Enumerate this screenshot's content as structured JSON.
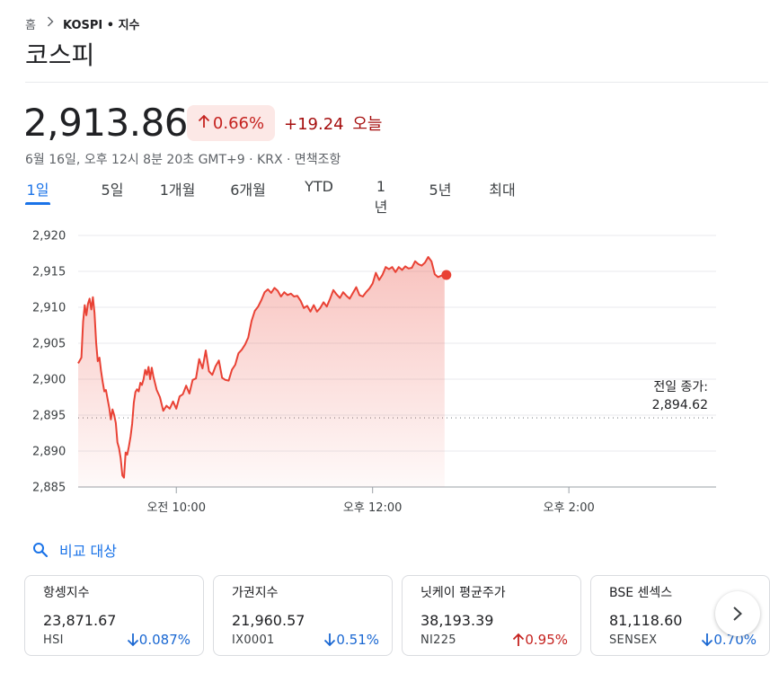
{
  "breadcrumb": {
    "home": "홈",
    "current": "KOSPI • 지수"
  },
  "title": "코스피",
  "quote": {
    "price": "2,913.86",
    "pct_change": "0.66%",
    "abs_change": "+19.24",
    "period_label": "오늘",
    "meta": "6월 16일, 오후 12시 8분 20초 GMT+9 · KRX · 면책조항"
  },
  "tabs": [
    {
      "label": "1일",
      "active": true
    },
    {
      "label": "5일"
    },
    {
      "label": "1개월"
    },
    {
      "label": "6개월"
    },
    {
      "label": "YTD"
    },
    {
      "label": "1년"
    },
    {
      "label": "5년"
    },
    {
      "label": "최대"
    }
  ],
  "colors": {
    "up": "#c5221f",
    "down": "#1967d2",
    "line": "#e94235",
    "accent": "#1a73e8"
  },
  "chart_data": {
    "type": "area",
    "title": "",
    "y_ticks": [
      "2,920",
      "2,915",
      "2,910",
      "2,905",
      "2,900",
      "2,895",
      "2,890",
      "2,885"
    ],
    "x_ticks": [
      "오전 10:00",
      "오후 12:00",
      "오후 2:00"
    ],
    "ylim": [
      2885,
      2920
    ],
    "xlim_minutes": [
      0,
      390
    ],
    "x_tick_minutes": [
      60,
      180,
      300
    ],
    "prev_close": 2894.62,
    "prev_close_label": "전일 종가:",
    "prev_close_value": "2,894.62",
    "series": [
      {
        "values": [
          [
            0,
            2902.2
          ],
          [
            1,
            2902.6
          ],
          [
            2,
            2903.0
          ],
          [
            3,
            2908.0
          ],
          [
            4,
            2910.3
          ],
          [
            5,
            2908.9
          ],
          [
            6,
            2910.5
          ],
          [
            7,
            2911.2
          ],
          [
            8,
            2909.7
          ],
          [
            9,
            2911.4
          ],
          [
            10,
            2909.2
          ],
          [
            11,
            2905.1
          ],
          [
            12,
            2902.5
          ],
          [
            13,
            2903.0
          ],
          [
            14,
            2901.1
          ],
          [
            15,
            2899.6
          ],
          [
            16,
            2898.3
          ],
          [
            17,
            2898.5
          ],
          [
            18,
            2897.2
          ],
          [
            19,
            2896.0
          ],
          [
            20,
            2894.4
          ],
          [
            21,
            2895.8
          ],
          [
            22,
            2895.0
          ],
          [
            23,
            2893.9
          ],
          [
            24,
            2891.2
          ],
          [
            25,
            2890.4
          ],
          [
            26,
            2889.0
          ],
          [
            27,
            2886.6
          ],
          [
            28,
            2886.3
          ],
          [
            29,
            2889.8
          ],
          [
            30,
            2889.5
          ],
          [
            31,
            2890.6
          ],
          [
            32,
            2892.0
          ],
          [
            33,
            2893.8
          ],
          [
            34,
            2896.7
          ],
          [
            35,
            2898.2
          ],
          [
            36,
            2898.6
          ],
          [
            37,
            2898.3
          ],
          [
            38,
            2899.5
          ],
          [
            39,
            2899.2
          ],
          [
            40,
            2900.0
          ],
          [
            41,
            2901.3
          ],
          [
            42,
            2900.6
          ],
          [
            43,
            2901.7
          ],
          [
            44,
            2900.0
          ],
          [
            45,
            2901.6
          ],
          [
            46,
            2900.4
          ],
          [
            48,
            2898.5
          ],
          [
            50,
            2897.5
          ],
          [
            52,
            2895.6
          ],
          [
            54,
            2896.3
          ],
          [
            56,
            2895.9
          ],
          [
            58,
            2896.9
          ],
          [
            60,
            2895.9
          ],
          [
            62,
            2897.6
          ],
          [
            64,
            2897.9
          ],
          [
            66,
            2899.1
          ],
          [
            68,
            2898.0
          ],
          [
            70,
            2899.9
          ],
          [
            72,
            2900.1
          ],
          [
            74,
            2902.8
          ],
          [
            76,
            2901.5
          ],
          [
            78,
            2904.0
          ],
          [
            80,
            2901.1
          ],
          [
            82,
            2900.6
          ],
          [
            84,
            2901.8
          ],
          [
            86,
            2902.6
          ],
          [
            88,
            2900.2
          ],
          [
            90,
            2899.9
          ],
          [
            92,
            2899.8
          ],
          [
            94,
            2901.3
          ],
          [
            96,
            2902.0
          ],
          [
            98,
            2903.6
          ],
          [
            100,
            2904.1
          ],
          [
            102,
            2904.8
          ],
          [
            104,
            2905.8
          ],
          [
            106,
            2908.1
          ],
          [
            108,
            2909.5
          ],
          [
            110,
            2910.1
          ],
          [
            112,
            2911.0
          ],
          [
            114,
            2912.1
          ],
          [
            116,
            2912.5
          ],
          [
            118,
            2912.0
          ],
          [
            120,
            2912.7
          ],
          [
            122,
            2912.3
          ],
          [
            124,
            2911.5
          ],
          [
            126,
            2912.1
          ],
          [
            128,
            2911.7
          ],
          [
            130,
            2911.9
          ],
          [
            132,
            2911.5
          ],
          [
            134,
            2911.6
          ],
          [
            136,
            2910.9
          ],
          [
            138,
            2909.9
          ],
          [
            140,
            2910.2
          ],
          [
            142,
            2909.4
          ],
          [
            144,
            2910.3
          ],
          [
            146,
            2909.4
          ],
          [
            148,
            2909.9
          ],
          [
            150,
            2910.7
          ],
          [
            152,
            2910.1
          ],
          [
            154,
            2911.2
          ],
          [
            156,
            2912.4
          ],
          [
            158,
            2911.8
          ],
          [
            160,
            2911.3
          ],
          [
            162,
            2912.1
          ],
          [
            164,
            2911.6
          ],
          [
            166,
            2911.2
          ],
          [
            168,
            2912.0
          ],
          [
            170,
            2912.8
          ],
          [
            172,
            2911.7
          ],
          [
            174,
            2911.5
          ],
          [
            176,
            2912.1
          ],
          [
            178,
            2912.6
          ],
          [
            180,
            2913.3
          ],
          [
            182,
            2914.8
          ],
          [
            184,
            2913.8
          ],
          [
            186,
            2914.5
          ],
          [
            188,
            2915.6
          ],
          [
            190,
            2915.3
          ],
          [
            192,
            2915.6
          ],
          [
            194,
            2914.9
          ],
          [
            196,
            2915.6
          ],
          [
            198,
            2915.2
          ],
          [
            200,
            2915.7
          ],
          [
            202,
            2915.4
          ],
          [
            204,
            2915.5
          ],
          [
            206,
            2916.4
          ],
          [
            208,
            2916.0
          ],
          [
            210,
            2915.8
          ],
          [
            212,
            2916.2
          ],
          [
            214,
            2917.0
          ],
          [
            216,
            2916.4
          ],
          [
            218,
            2914.6
          ],
          [
            220,
            2914.2
          ],
          [
            222,
            2914.4
          ],
          [
            224,
            2914.5
          ]
        ]
      }
    ]
  },
  "compare": {
    "label": "비교 대상"
  },
  "cards": [
    {
      "name": "항셍지수",
      "value": "23,871.67",
      "symbol": "HSI",
      "change": "0.087%",
      "direction": "down"
    },
    {
      "name": "가권지수",
      "value": "21,960.57",
      "symbol": "IX0001",
      "change": "0.51%",
      "direction": "down"
    },
    {
      "name": "닛케이 평균주가",
      "value": "38,193.39",
      "symbol": "NI225",
      "change": "0.95%",
      "direction": "up"
    },
    {
      "name": "BSE 센섹스",
      "value": "81,118.60",
      "symbol": "SENSEX",
      "change": "0.70%",
      "direction": "down"
    }
  ]
}
